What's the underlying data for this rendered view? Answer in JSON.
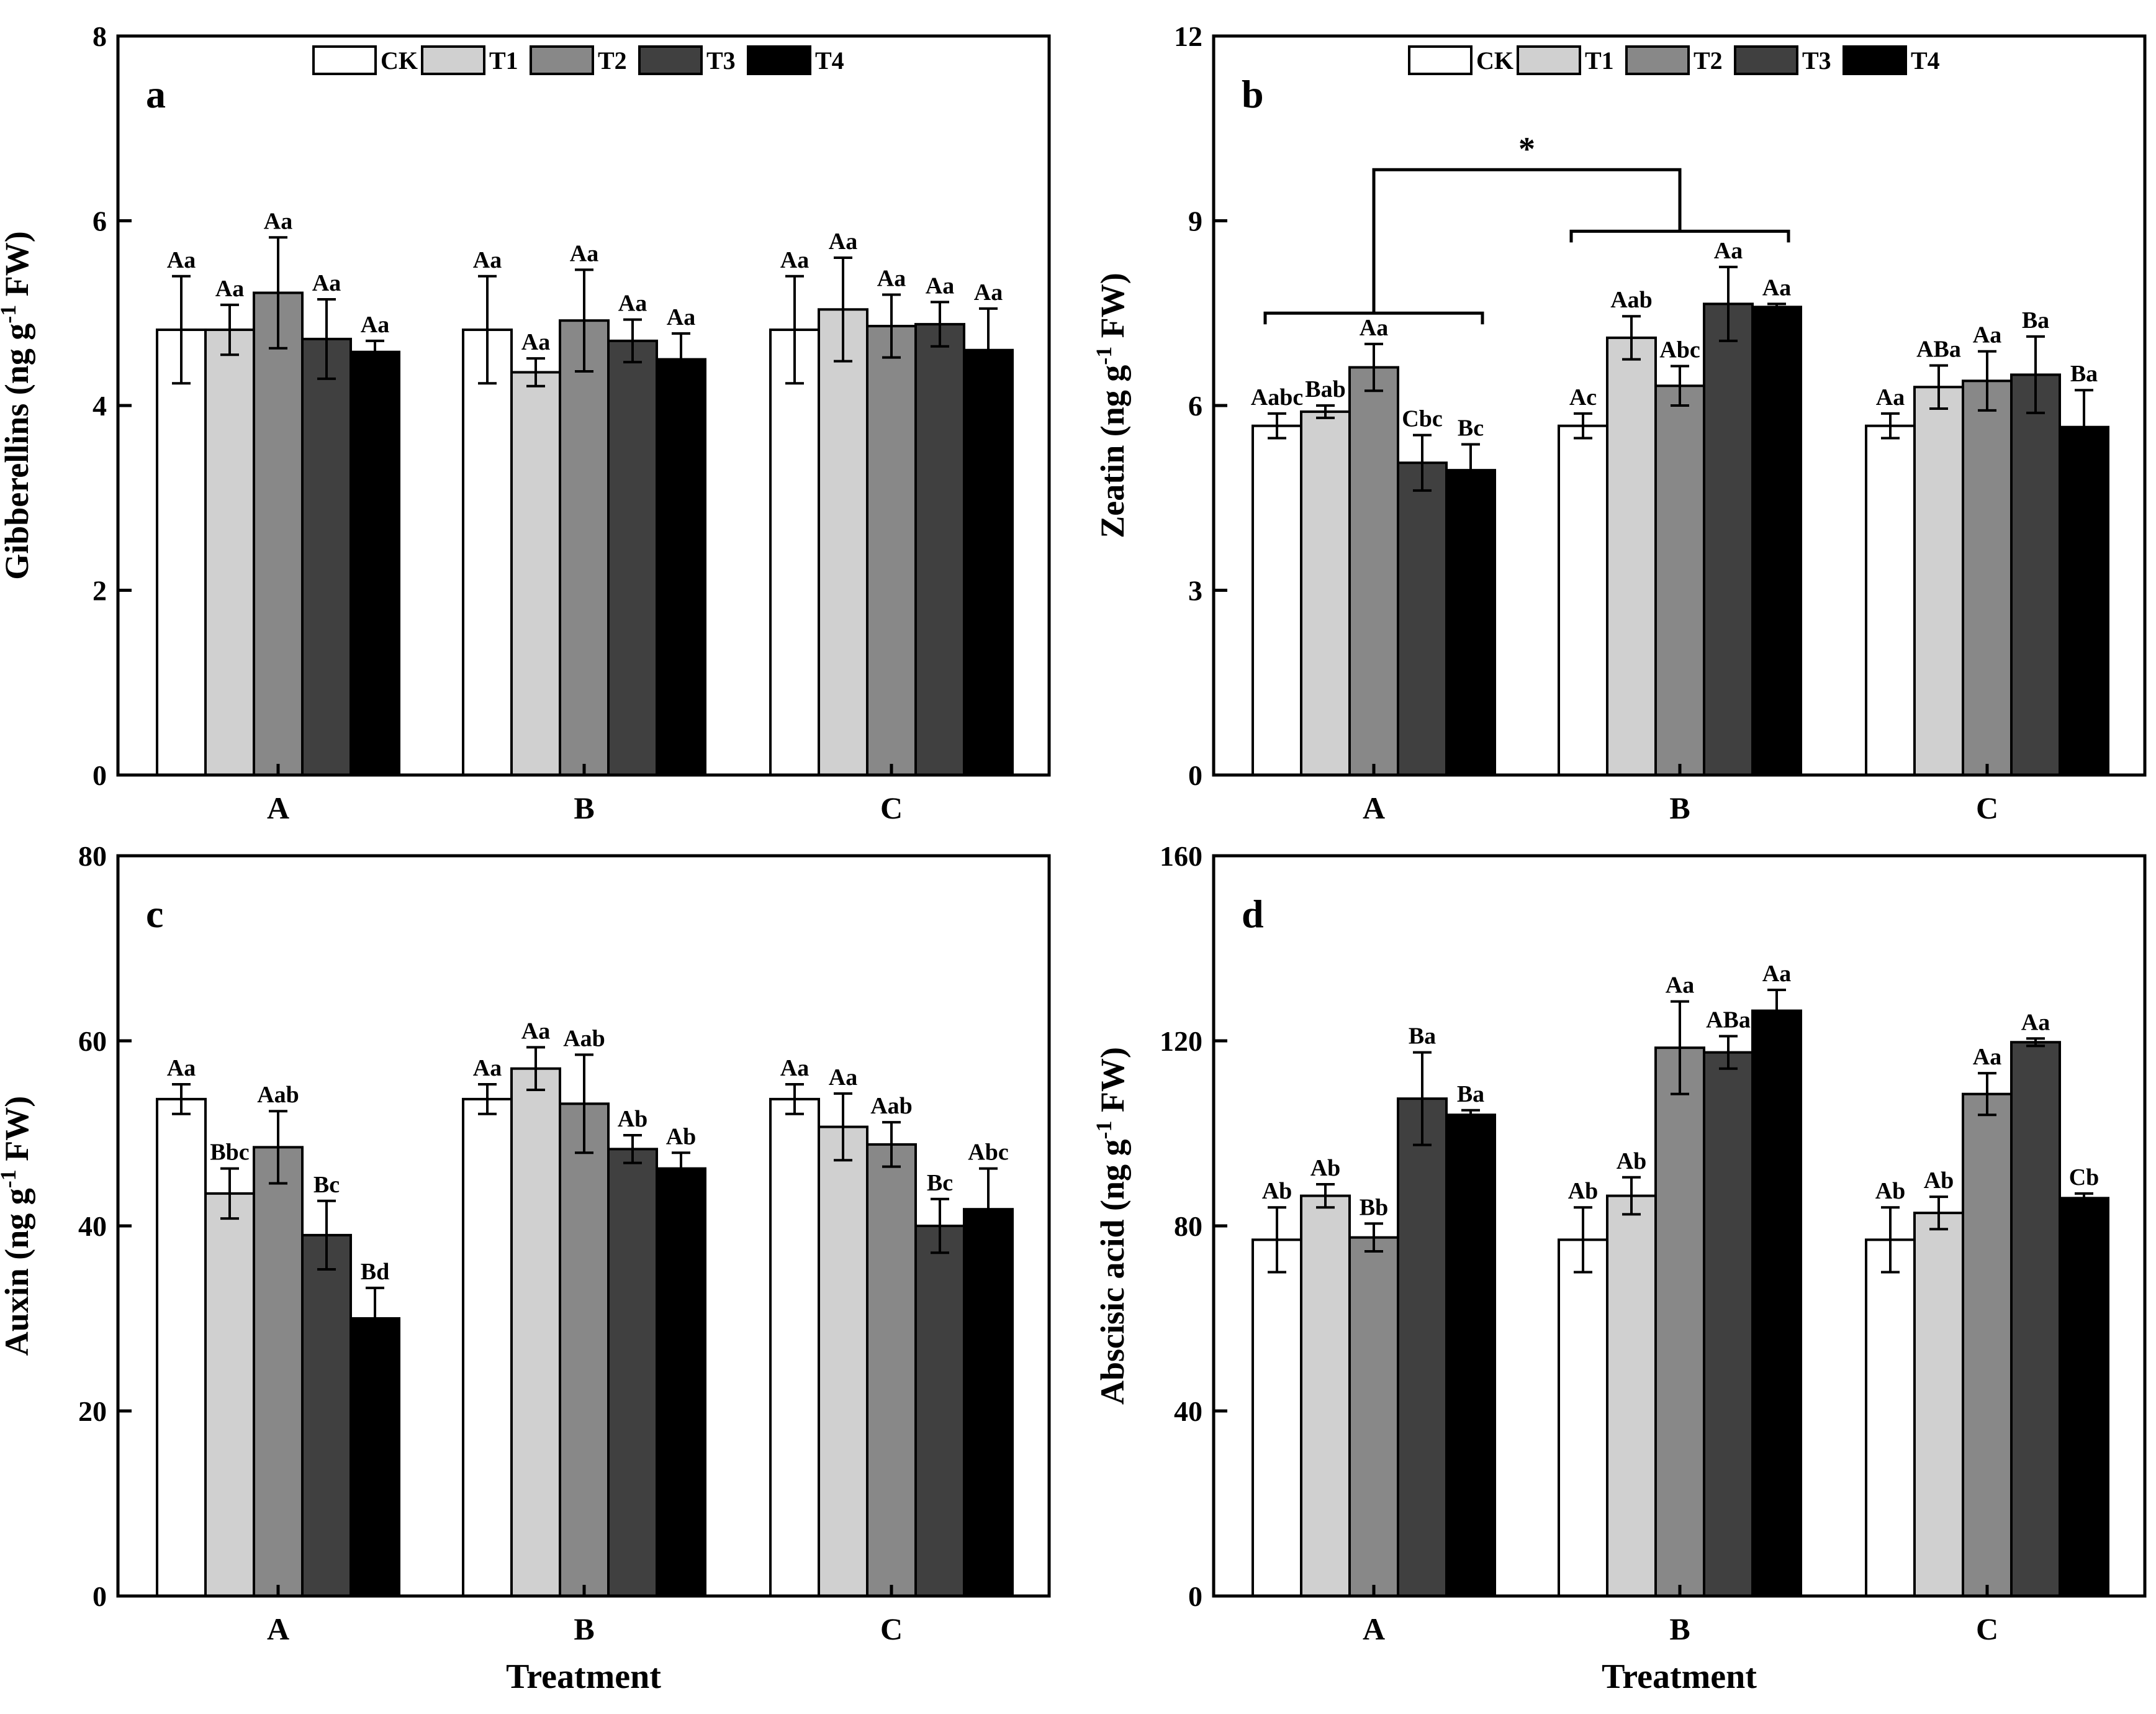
{
  "legend": {
    "series": [
      "CK",
      "T1",
      "T2",
      "T3",
      "T4"
    ],
    "colors": [
      "#ffffff",
      "#d0d0d0",
      "#888888",
      "#404040",
      "#000000"
    ]
  },
  "chart_data": [
    {
      "type": "bar",
      "panel_letter": "a",
      "ylabel_main": "Gibberellins (ng g",
      "ylabel_sup": "-1",
      "ylabel_end": " FW)",
      "xlabel": "",
      "categories": [
        "A",
        "B",
        "C"
      ],
      "ylim": [
        0,
        8
      ],
      "yticks": [
        "0",
        "2",
        "4",
        "6",
        "8"
      ],
      "yticks_values": [
        0,
        2,
        4,
        6,
        8
      ],
      "show_legend": true,
      "series": [
        {
          "name": "CK",
          "values": [
            4.82,
            4.82,
            4.82
          ],
          "errors": [
            0.58,
            0.58,
            0.58
          ],
          "labels": [
            "Aa",
            "Aa",
            "Aa"
          ]
        },
        {
          "name": "T1",
          "values": [
            4.82,
            4.36,
            5.04
          ],
          "errors": [
            0.27,
            0.15,
            0.56
          ],
          "labels": [
            "Aa",
            "Aa",
            "Aa"
          ]
        },
        {
          "name": "T2",
          "values": [
            5.22,
            4.92,
            4.86
          ],
          "errors": [
            0.6,
            0.55,
            0.34
          ],
          "labels": [
            "Aa",
            "Aa",
            "Aa"
          ]
        },
        {
          "name": "T3",
          "values": [
            4.72,
            4.7,
            4.88
          ],
          "errors": [
            0.43,
            0.23,
            0.24
          ],
          "labels": [
            "Aa",
            "Aa",
            "Aa"
          ]
        },
        {
          "name": "T4",
          "values": [
            4.58,
            4.5,
            4.6
          ],
          "errors": [
            0.12,
            0.28,
            0.45
          ],
          "labels": [
            "Aa",
            "Aa",
            "Aa"
          ]
        }
      ]
    },
    {
      "type": "bar",
      "panel_letter": "b",
      "ylabel_main": "Zeatin (ng g",
      "ylabel_sup": "-1",
      "ylabel_end": " FW)",
      "xlabel": "",
      "categories": [
        "A",
        "B",
        "C"
      ],
      "ylim": [
        0,
        12
      ],
      "yticks": [
        "0",
        "3",
        "6",
        "9",
        "12"
      ],
      "yticks_values": [
        0,
        3,
        6,
        9,
        12
      ],
      "show_legend": true,
      "significance": "*",
      "series": [
        {
          "name": "CK",
          "values": [
            5.67,
            5.67,
            5.67
          ],
          "errors": [
            0.2,
            0.2,
            0.2
          ],
          "labels": [
            "Aabc",
            "Ac",
            "Aa"
          ]
        },
        {
          "name": "T1",
          "values": [
            5.9,
            7.1,
            6.3
          ],
          "errors": [
            0.1,
            0.35,
            0.35
          ],
          "labels": [
            "Bab",
            "Aab",
            "ABa"
          ]
        },
        {
          "name": "T2",
          "values": [
            6.62,
            6.32,
            6.4
          ],
          "errors": [
            0.38,
            0.32,
            0.48
          ],
          "labels": [
            "Aa",
            "Abc",
            "Aa"
          ]
        },
        {
          "name": "T3",
          "values": [
            5.07,
            7.65,
            6.5
          ],
          "errors": [
            0.45,
            0.6,
            0.62
          ],
          "labels": [
            "Cbc",
            "Aa",
            "Ba"
          ]
        },
        {
          "name": "T4",
          "values": [
            4.95,
            7.6,
            5.65
          ],
          "errors": [
            0.42,
            0.05,
            0.6
          ],
          "labels": [
            "Bc",
            "Aa",
            "Ba"
          ]
        }
      ]
    },
    {
      "type": "bar",
      "panel_letter": "c",
      "ylabel_main": "Auxin (ng g",
      "ylabel_sup": "-1",
      "ylabel_end": " FW)",
      "xlabel": "Treatment",
      "categories": [
        "A",
        "B",
        "C"
      ],
      "ylim": [
        0,
        80
      ],
      "yticks": [
        "0",
        "20",
        "40",
        "60",
        "80"
      ],
      "yticks_values": [
        0,
        20,
        40,
        60,
        80
      ],
      "show_legend": false,
      "series": [
        {
          "name": "CK",
          "values": [
            53.7,
            53.7,
            53.7
          ],
          "errors": [
            1.6,
            1.6,
            1.6
          ],
          "labels": [
            "Aa",
            "Aa",
            "Aa"
          ]
        },
        {
          "name": "T1",
          "values": [
            43.5,
            57.0,
            50.7
          ],
          "errors": [
            2.7,
            2.3,
            3.6
          ],
          "labels": [
            "Bbc",
            "Aa",
            "Aa"
          ]
        },
        {
          "name": "T2",
          "values": [
            48.5,
            53.2,
            48.8
          ],
          "errors": [
            3.9,
            5.3,
            2.4
          ],
          "labels": [
            "Aab",
            "Aab",
            "Aab"
          ]
        },
        {
          "name": "T3",
          "values": [
            39.0,
            48.3,
            40.0
          ],
          "errors": [
            3.7,
            1.5,
            2.9
          ],
          "labels": [
            "Bc",
            "Ab",
            "Bc"
          ]
        },
        {
          "name": "T4",
          "values": [
            30.0,
            46.2,
            41.8
          ],
          "errors": [
            3.3,
            1.7,
            4.4
          ],
          "labels": [
            "Bd",
            "Ab",
            "Abc"
          ]
        }
      ]
    },
    {
      "type": "bar",
      "panel_letter": "d",
      "ylabel_main": "Abscisic acid (ng g",
      "ylabel_sup": "-1",
      "ylabel_end": " FW)",
      "xlabel": "Treatment",
      "categories": [
        "A",
        "B",
        "C"
      ],
      "ylim": [
        0,
        160
      ],
      "yticks": [
        "0",
        "40",
        "80",
        "120",
        "160"
      ],
      "yticks_values": [
        0,
        40,
        80,
        120,
        160
      ],
      "show_legend": false,
      "series": [
        {
          "name": "CK",
          "values": [
            77.0,
            77.0,
            77.0
          ],
          "errors": [
            7.0,
            7.0,
            7.0
          ],
          "labels": [
            "Ab",
            "Ab",
            "Ab"
          ]
        },
        {
          "name": "T1",
          "values": [
            86.5,
            86.5,
            82.8
          ],
          "errors": [
            2.5,
            4.0,
            3.5
          ],
          "labels": [
            "Ab",
            "Ab",
            "Ab"
          ]
        },
        {
          "name": "T2",
          "values": [
            77.5,
            118.5,
            108.5
          ],
          "errors": [
            3.0,
            10.0,
            4.5
          ],
          "labels": [
            "Bb",
            "Aa",
            "Aa"
          ]
        },
        {
          "name": "T3",
          "values": [
            107.5,
            117.5,
            119.7
          ],
          "errors": [
            10.0,
            3.5,
            0.8
          ],
          "labels": [
            "Ba",
            "ABa",
            "Aa"
          ]
        },
        {
          "name": "T4",
          "values": [
            104.0,
            126.5,
            86.0
          ],
          "errors": [
            1.0,
            4.5,
            1.0
          ],
          "labels": [
            "Ba",
            "Aa",
            "Cb"
          ]
        }
      ]
    }
  ]
}
